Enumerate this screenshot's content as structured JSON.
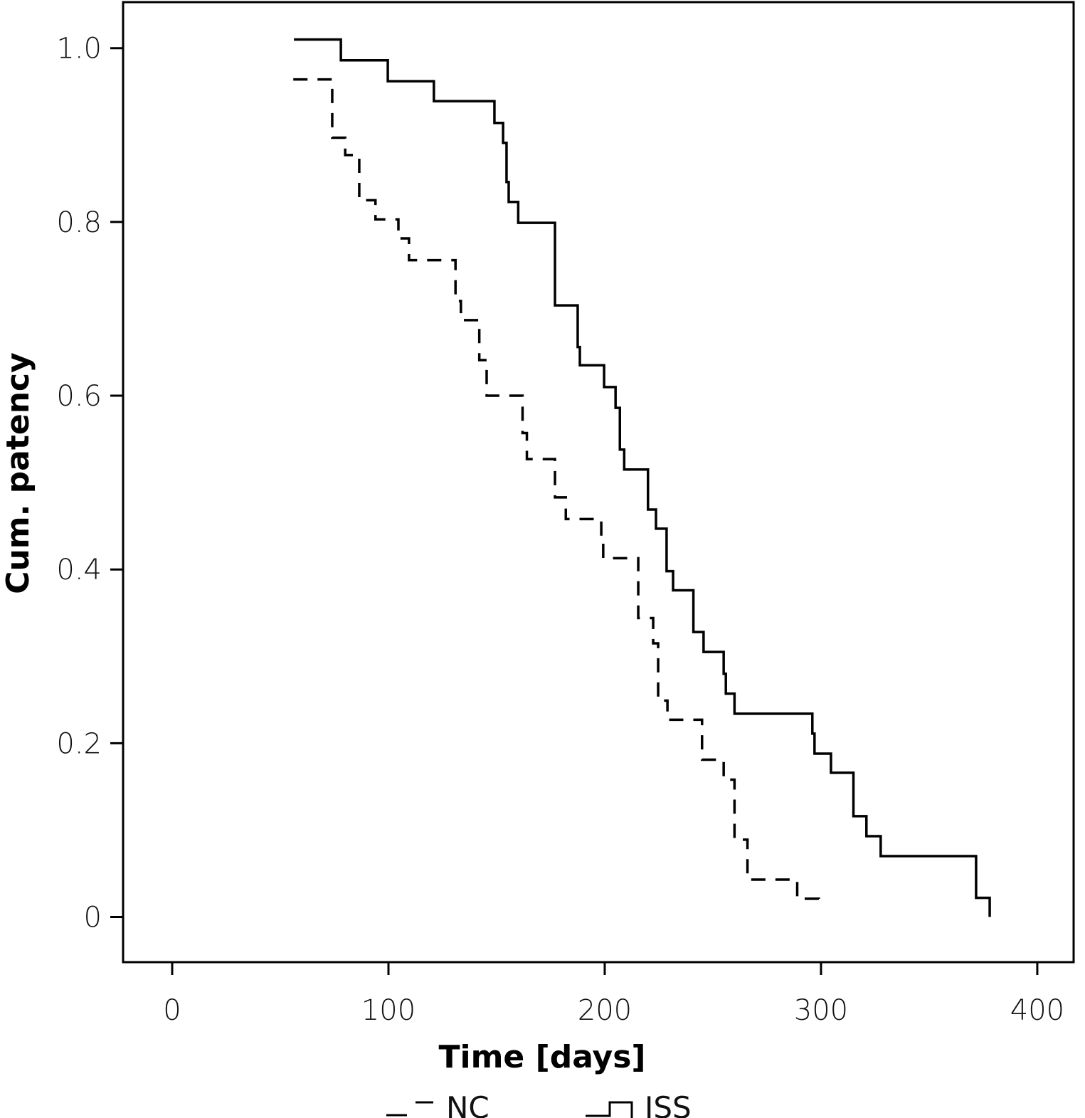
{
  "chart_data": {
    "type": "line",
    "subtype": "kaplan-meier-step",
    "title": "",
    "xlabel": "Time [days]",
    "ylabel": "Cum. patency",
    "xlim": [
      -22.7,
      416.8
    ],
    "ylim": [
      -0.052,
      1.053
    ],
    "xticks": [
      0,
      100,
      200,
      300,
      400
    ],
    "xtick_labels": [
      "0",
      "100",
      "200",
      "300",
      "400"
    ],
    "yticks": [
      0,
      0.2,
      0.4,
      0.6,
      0.8,
      1.0
    ],
    "ytick_labels": [
      "0",
      "0.2",
      "0.4",
      "0.6",
      "0.8",
      "1.0"
    ],
    "grid": false,
    "legend_position": "bottom",
    "series": [
      {
        "name": "NC",
        "style": "dashed",
        "color": "#000000",
        "start": [
          56,
          0.964
        ],
        "steps": [
          [
            74,
            0.897
          ],
          [
            80,
            0.877
          ],
          [
            86.5,
            0.825
          ],
          [
            94,
            0.803
          ],
          [
            104.6,
            0.781
          ],
          [
            109.5,
            0.756
          ],
          [
            131,
            0.709
          ],
          [
            133.5,
            0.687
          ],
          [
            142,
            0.641
          ],
          [
            145.4,
            0.6
          ],
          [
            162,
            0.557
          ],
          [
            164,
            0.527
          ],
          [
            177,
            0.483
          ],
          [
            182,
            0.458
          ],
          [
            198.4,
            0.436
          ],
          [
            199.3,
            0.413
          ],
          [
            215.5,
            0.344
          ],
          [
            222.4,
            0.315
          ],
          [
            224.7,
            0.249
          ],
          [
            229,
            0.227
          ],
          [
            245,
            0.181
          ],
          [
            255,
            0.158
          ],
          [
            260,
            0.089
          ],
          [
            266,
            0.043
          ],
          [
            289,
            0.021
          ]
        ],
        "end": [
          299,
          0.021
        ]
      },
      {
        "name": "ISS",
        "style": "solid",
        "color": "#000000",
        "start": [
          56.3,
          1.01
        ],
        "steps": [
          [
            78,
            0.986
          ],
          [
            99.7,
            0.962
          ],
          [
            121,
            0.939
          ],
          [
            149,
            0.914
          ],
          [
            153,
            0.891
          ],
          [
            154.6,
            0.846
          ],
          [
            155.6,
            0.823
          ],
          [
            160,
            0.799
          ],
          [
            177,
            0.704
          ],
          [
            187.5,
            0.656
          ],
          [
            188.5,
            0.635
          ],
          [
            199.7,
            0.61
          ],
          [
            205,
            0.586
          ],
          [
            207,
            0.538
          ],
          [
            209,
            0.515
          ],
          [
            220,
            0.469
          ],
          [
            223.7,
            0.447
          ],
          [
            228.6,
            0.398
          ],
          [
            231.6,
            0.376
          ],
          [
            241,
            0.328
          ],
          [
            245.7,
            0.305
          ],
          [
            255,
            0.28
          ],
          [
            256,
            0.257
          ],
          [
            260,
            0.234
          ],
          [
            296,
            0.211
          ],
          [
            297,
            0.188
          ],
          [
            304.6,
            0.166
          ],
          [
            315,
            0.116
          ],
          [
            321,
            0.093
          ],
          [
            327.6,
            0.07
          ],
          [
            371.7,
            0.022
          ],
          [
            378,
            0.0
          ]
        ],
        "end": [
          378,
          0.0
        ]
      }
    ]
  }
}
